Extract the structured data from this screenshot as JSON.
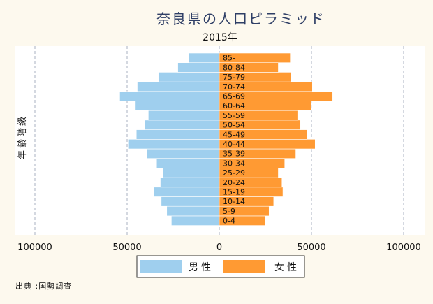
{
  "chart_data": {
    "type": "bar",
    "orientation": "horizontal-population-pyramid",
    "title": "奈良県の人口ピラミッド",
    "subtitle": "2015年",
    "ylabel": "年齢階級",
    "xlim": [
      -100000,
      100000
    ],
    "xticks": [
      -100000,
      -50000,
      0,
      50000,
      100000
    ],
    "xtick_labels": [
      "100000",
      "50000",
      "0",
      "50000",
      "100000"
    ],
    "grid": true,
    "categories": [
      "0-4",
      "5-9",
      "10-14",
      "15-19",
      "20-24",
      "25-29",
      "30-34",
      "35-39",
      "40-44",
      "45-49",
      "50-54",
      "55-59",
      "60-64",
      "65-69",
      "70-74",
      "75-79",
      "80-84",
      "85-"
    ],
    "series": [
      {
        "name": "男性",
        "color": "#9fcfee",
        "values": [
          26000,
          28500,
          31500,
          35500,
          32000,
          30500,
          34000,
          39500,
          49500,
          45000,
          40500,
          38500,
          45500,
          54000,
          44500,
          33000,
          22500,
          16500
        ]
      },
      {
        "name": "女性",
        "color": "#ff9a33",
        "values": [
          25000,
          27000,
          29500,
          34500,
          34000,
          32000,
          35500,
          41500,
          52000,
          47500,
          44000,
          42500,
          50000,
          61500,
          50500,
          39000,
          32000,
          38500
        ]
      }
    ],
    "legend_position": "bottom"
  },
  "source": "出典 :国勢調査",
  "background": "#fdf9ee",
  "plot_background": "#ffffff"
}
